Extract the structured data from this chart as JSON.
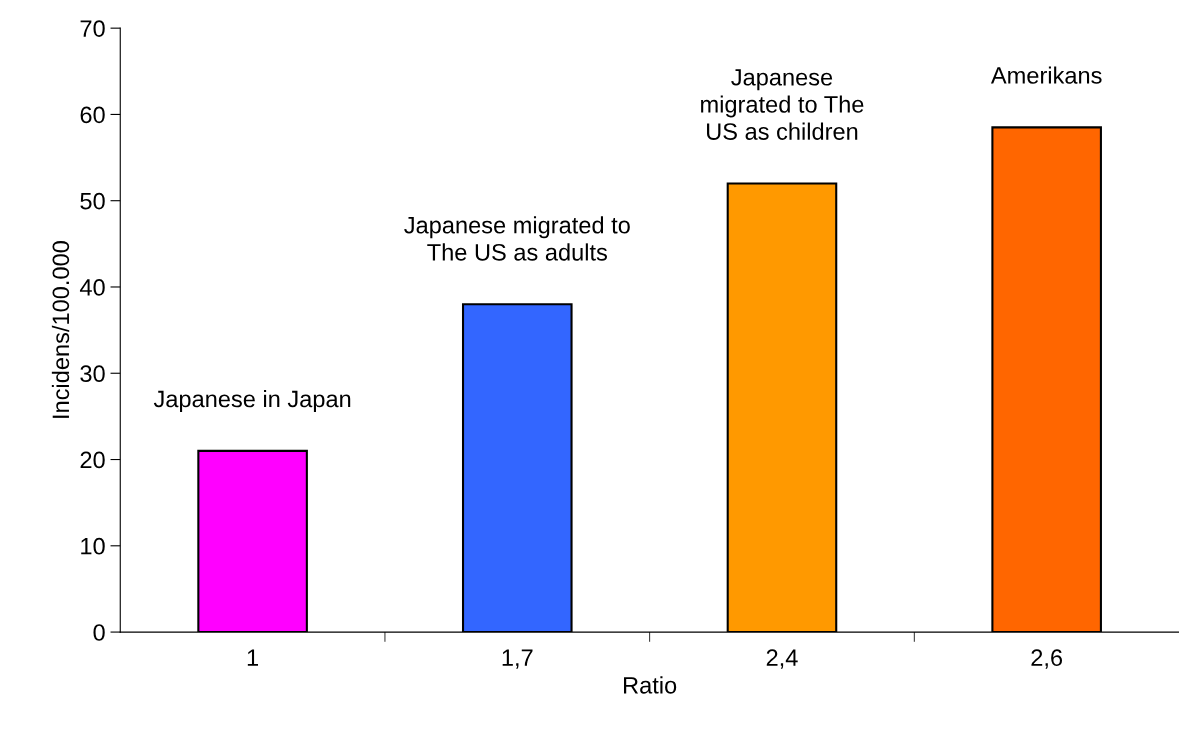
{
  "chart_data": {
    "type": "bar",
    "xlabel": "Ratio",
    "ylabel": "Incidens/100.000",
    "categories": [
      "1",
      "1,7",
      "2,4",
      "2,6"
    ],
    "values": [
      21,
      38,
      52,
      58.5
    ],
    "colors": [
      "#ff00ff",
      "#3366ff",
      "#ff9900",
      "#ff6600"
    ],
    "ylim": [
      0,
      70
    ],
    "yticks": [
      0,
      10,
      20,
      30,
      40,
      50,
      60,
      70
    ],
    "grid": false,
    "legend": false,
    "annotations": [
      {
        "text": "Japanese in Japan",
        "x": "1",
        "y": 21
      },
      {
        "text": "Japanese migrated to\nThe US as adults",
        "x": "1,7",
        "y": 38
      },
      {
        "text": "Japanese\nmigrated to The\nUS as children",
        "x": "2,4",
        "y": 52
      },
      {
        "text": "Amerikans",
        "x": "2,6",
        "y": 58.5
      }
    ]
  }
}
